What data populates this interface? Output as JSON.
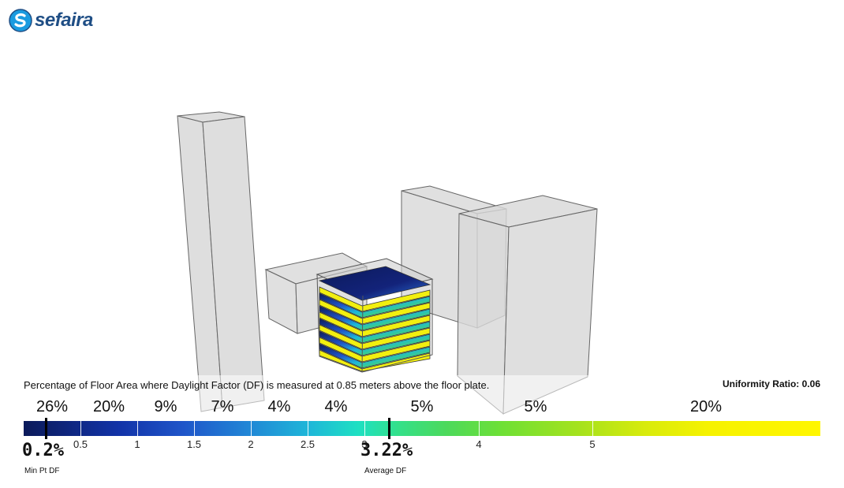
{
  "brand": {
    "name": "sefaira",
    "logo_icon": "sefaira-s-logo-icon",
    "color": "#1f4e85",
    "icon_color": "#1a9be0"
  },
  "model_view": {
    "building_fill": "#d6d6d6",
    "building_edge": "#555555"
  },
  "legend": {
    "caption": "Percentage of Floor Area where Daylight Factor (DF) is measured at 0.85 meters above the floor plate.",
    "uniformity_label": "Uniformity Ratio: 0.06",
    "percentages": [
      "26%",
      "20%",
      "9%",
      "7%",
      "4%",
      "4%",
      "5%",
      "5%",
      "20%"
    ],
    "ticks": [
      "0.5",
      "1",
      "1.5",
      "2",
      "2.5",
      "3",
      "4",
      "5"
    ],
    "min_pt": {
      "value": "0.2%",
      "label": "Min Pt DF"
    },
    "average": {
      "value": "3.22%",
      "label": "Average DF"
    }
  }
}
